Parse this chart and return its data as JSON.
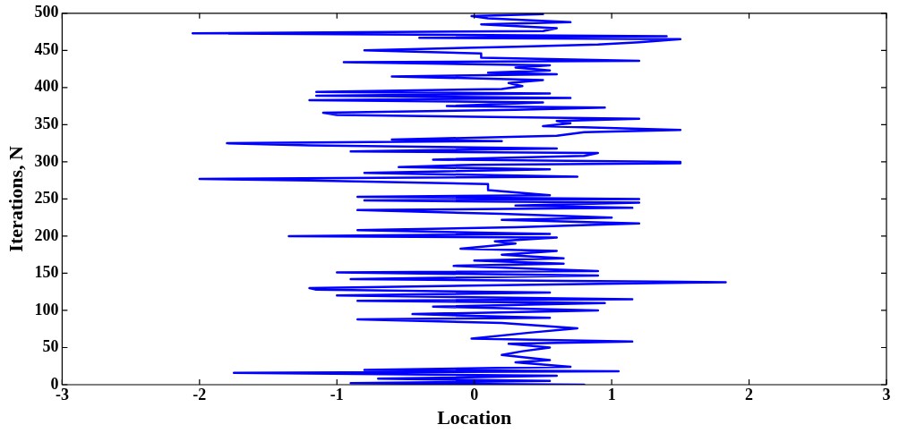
{
  "chart_data": {
    "type": "line",
    "xlabel": "Location",
    "ylabel": "Iterations, N",
    "xlim": [
      -3,
      3
    ],
    "xticks": [
      -3,
      -2,
      -1,
      0,
      1,
      2,
      3
    ],
    "ylim": [
      0,
      500
    ],
    "yticks": [
      0,
      50,
      100,
      150,
      200,
      250,
      300,
      350,
      400,
      450,
      500
    ],
    "grid": false,
    "marker": "none",
    "line_style": "solid",
    "series": [
      {
        "color": "#0000ff",
        "x": [
          0.8,
          -0.9,
          0.55,
          -0.7,
          0.6,
          -1.75,
          1.05,
          -0.8,
          0.7,
          0.3,
          0.55,
          0.2,
          0.35,
          0.55,
          0.25,
          1.15,
          -0.02,
          0.4,
          0.75,
          0.2,
          -0.85,
          0.55,
          -0.45,
          0.9,
          -0.3,
          0.95,
          -0.85,
          1.15,
          -1.0,
          0.55,
          -1.15,
          -1.2,
          0.2,
          1.83,
          -0.9,
          0.9,
          -1.0,
          0.9,
          -0.15,
          0.65,
          0.0,
          0.65,
          0.2,
          0.6,
          -0.1,
          0.3,
          0.15,
          0.6,
          -1.35,
          0.55,
          -0.85,
          0.3,
          1.2,
          0.2,
          1.0,
          0.2,
          -0.85,
          1.15,
          0.3,
          1.2,
          -0.8,
          1.2,
          -0.85,
          0.55,
          0.1,
          0.1,
          -1.2,
          -2.0,
          0.75,
          -0.8,
          0.55,
          -0.55,
          0.0,
          1.5,
          1.5,
          -0.3,
          0.8,
          0.9,
          -0.9,
          0.6,
          -1.2,
          -1.8,
          0.2,
          -0.6,
          0.6,
          0.8,
          1.5,
          0.5,
          0.7,
          0.6,
          1.2,
          -1.0,
          -1.1,
          0.3,
          0.95,
          -0.2,
          0.5,
          -1.2,
          0.7,
          -1.15,
          0.55,
          -1.15,
          0.2,
          0.35,
          0.25,
          0.5,
          -0.6,
          0.6,
          0.1,
          0.55,
          0.3,
          0.55,
          -0.95,
          1.2,
          0.05,
          0.05,
          -0.8,
          0.3,
          0.9,
          1.2,
          1.5,
          -0.4,
          1.4,
          -2.05,
          0.5,
          0.6,
          0.05,
          0.7,
          0.1,
          -0.02,
          0.5
        ],
        "values": [
          0,
          2,
          5,
          8,
          12,
          16,
          18,
          20,
          24,
          30,
          33,
          40,
          45,
          50,
          55,
          58,
          62,
          70,
          76,
          83,
          88,
          90,
          95,
          100,
          105,
          110,
          113,
          115,
          120,
          124,
          128,
          130,
          134,
          138,
          142,
          147,
          151,
          153,
          160,
          163,
          167,
          170,
          175,
          180,
          183,
          190,
          193,
          198,
          200,
          203,
          208,
          212,
          217,
          222,
          225,
          230,
          235,
          238,
          241,
          245,
          248,
          250,
          253,
          255,
          262,
          270,
          275,
          277,
          280,
          285,
          290,
          293,
          296,
          298,
          300,
          303,
          308,
          312,
          314,
          318,
          322,
          325,
          328,
          330,
          335,
          340,
          343,
          348,
          352,
          355,
          358,
          363,
          366,
          370,
          373,
          375,
          380,
          383,
          386,
          389,
          392,
          394,
          398,
          402,
          406,
          410,
          415,
          418,
          420,
          423,
          427,
          430,
          434,
          436,
          440,
          446,
          450,
          455,
          458,
          461,
          465,
          467,
          469,
          473,
          476,
          480,
          485,
          488,
          493,
          496,
          499
        ]
      }
    ]
  }
}
